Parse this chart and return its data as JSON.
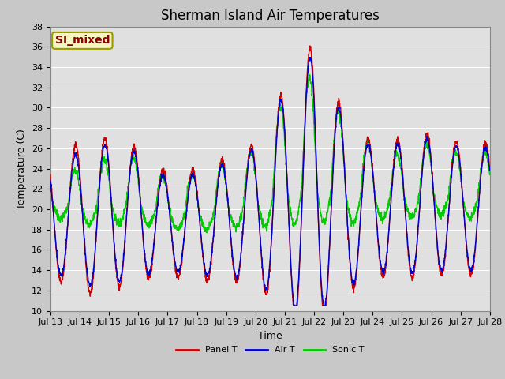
{
  "title": "Sherman Island Air Temperatures",
  "xlabel": "Time",
  "ylabel": "Temperature (C)",
  "annotation": "SI_mixed",
  "ylim": [
    10,
    38
  ],
  "yticks": [
    10,
    12,
    14,
    16,
    18,
    20,
    22,
    24,
    26,
    28,
    30,
    32,
    34,
    36,
    38
  ],
  "x_labels": [
    "Jul 13",
    "Jul 14",
    "Jul 15",
    "Jul 16",
    "Jul 17",
    "Jul 18",
    "Jul 19",
    "Jul 20",
    "Jul 21",
    "Jul 22",
    "Jul 23",
    "Jul 24",
    "Jul 25",
    "Jul 26",
    "Jul 27",
    "Jul 28"
  ],
  "line_colors": {
    "panel": "#cc0000",
    "air": "#0000cc",
    "sonic": "#00cc00"
  },
  "fig_bg_color": "#c8c8c8",
  "plot_bg_color": "#e0e0e0",
  "grid_color": "#ffffff",
  "legend_entries": [
    "Panel T",
    "Air T",
    "Sonic T"
  ],
  "title_fontsize": 12,
  "axis_fontsize": 9,
  "tick_fontsize": 8,
  "annotation_fontsize": 10,
  "linewidth": 1.0
}
